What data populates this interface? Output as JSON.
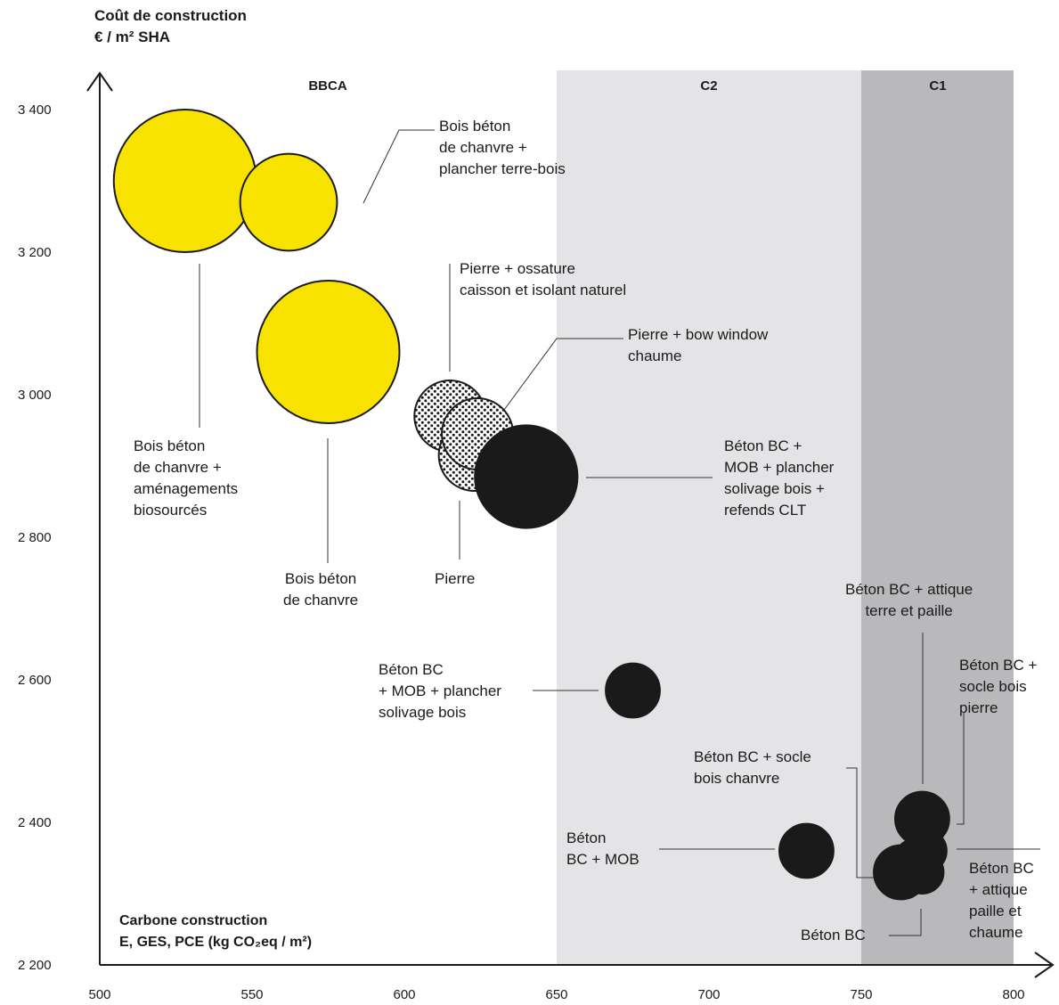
{
  "ylabel": [
    "Coût de construction",
    "€ / m² SHA"
  ],
  "xlabel": [
    "Carbone construction",
    "E, GES, PCE (kg CO₂eq / m²)"
  ],
  "colors": {
    "biosource": "#f7e200",
    "stone": "#ffffff",
    "concrete": "#1a1a1a",
    "zone_c2": "#e4e4e6",
    "zone_c1": "#b9b9bc",
    "axis": "#1a1a1a"
  },
  "chart_data": {
    "type": "scatter",
    "xlabel": "Carbone construction E, GES, PCE (kg CO₂eq / m²)",
    "ylabel": "Coût de construction € / m² SHA",
    "xlim": [
      500,
      800
    ],
    "ylim": [
      2200,
      3400
    ],
    "x_ticks": [
      "500",
      "550",
      "600",
      "650",
      "700",
      "750",
      "800"
    ],
    "y_ticks": [
      "2 200",
      "2 400",
      "2 600",
      "2 800",
      "3 000",
      "3 200",
      "3 400"
    ],
    "zones": [
      {
        "label": "BBCA",
        "from": 500,
        "to": 650
      },
      {
        "label": "C2",
        "from": 650,
        "to": 750
      },
      {
        "label": "C1",
        "from": 750,
        "to": 800
      }
    ],
    "points": [
      {
        "name": "Bois béton de chanvre + aménagements biosourcés",
        "x": 528,
        "y": 3300,
        "style": "biosource",
        "size": 1.0
      },
      {
        "name": "Bois béton de chanvre + plancher terre-bois",
        "x": 562,
        "y": 3270,
        "style": "biosource",
        "size": 0.68
      },
      {
        "name": "Bois béton de chanvre",
        "x": 575,
        "y": 3060,
        "style": "biosource",
        "size": 1.0
      },
      {
        "name": "Pierre + ossature caisson et isolant naturel",
        "x": 615,
        "y": 2970,
        "style": "stone",
        "size": 0.5
      },
      {
        "name": "Pierre",
        "x": 623,
        "y": 2915,
        "style": "stone",
        "size": 0.5
      },
      {
        "name": "Pierre + bow window chaume",
        "x": 624,
        "y": 2945,
        "style": "stone",
        "size": 0.5
      },
      {
        "name": "Béton BC + MOB + plancher solivage bois + refends CLT",
        "x": 640,
        "y": 2885,
        "style": "concrete",
        "size": 0.72
      },
      {
        "name": "Béton BC + MOB + plancher solivage bois",
        "x": 675,
        "y": 2585,
        "style": "concrete",
        "size": 0.38
      },
      {
        "name": "Béton BC + MOB",
        "x": 732,
        "y": 2360,
        "style": "concrete",
        "size": 0.38
      },
      {
        "name": "Béton BC + attique terre et paille",
        "x": 770,
        "y": 2405,
        "style": "concrete",
        "size": 0.38
      },
      {
        "name": "Béton BC + socle bois pierre",
        "x": 771,
        "y": 2360,
        "style": "concrete",
        "size": 0.3
      },
      {
        "name": "Béton BC + attique paille et chaume",
        "x": 770,
        "y": 2330,
        "style": "concrete",
        "size": 0.3
      },
      {
        "name": "Béton BC + socle bois chanvre",
        "x": 763,
        "y": 2330,
        "style": "concrete",
        "size": 0.38
      },
      {
        "name": "Béton BC",
        "x": 768,
        "y": 2345,
        "style": "concrete",
        "size": 0.32
      }
    ]
  },
  "annotations": [
    {
      "id": "ann-bbc-plancher",
      "lines": [
        "Bois béton",
        "de chanvre +",
        "plancher terre-bois"
      ]
    },
    {
      "id": "ann-bbc-amenagements",
      "lines": [
        "Bois béton",
        "de chanvre +",
        "aménagements",
        "biosourcés"
      ]
    },
    {
      "id": "ann-bbc",
      "lines": [
        "Bois béton",
        "de chanvre"
      ]
    },
    {
      "id": "ann-pierre-ossature",
      "lines": [
        "Pierre + ossature",
        "caisson et isolant naturel"
      ]
    },
    {
      "id": "ann-pierre-bow",
      "lines": [
        "Pierre + bow window",
        "chaume"
      ]
    },
    {
      "id": "ann-pierre",
      "lines": [
        "Pierre"
      ]
    },
    {
      "id": "ann-beton-clt",
      "lines": [
        "Béton BC +",
        "MOB + plancher",
        "solivage bois +",
        "refends CLT"
      ]
    },
    {
      "id": "ann-beton-solivage",
      "lines": [
        "Béton BC",
        "+ MOB + plancher",
        "solivage bois"
      ]
    },
    {
      "id": "ann-beton-mob",
      "lines": [
        "Béton",
        "BC + MOB"
      ]
    },
    {
      "id": "ann-beton-attique-terre",
      "lines": [
        "Béton BC + attique",
        "terre et paille"
      ]
    },
    {
      "id": "ann-beton-socle-pierre",
      "lines": [
        "Béton BC +",
        "socle bois",
        "pierre"
      ]
    },
    {
      "id": "ann-beton-socle-chanvre",
      "lines": [
        "Béton BC + socle",
        "bois chanvre"
      ]
    },
    {
      "id": "ann-beton-attique-paille",
      "lines": [
        "Béton BC",
        "+ attique",
        "paille et",
        "chaume"
      ]
    },
    {
      "id": "ann-beton-bc",
      "lines": [
        "Béton BC"
      ]
    }
  ]
}
